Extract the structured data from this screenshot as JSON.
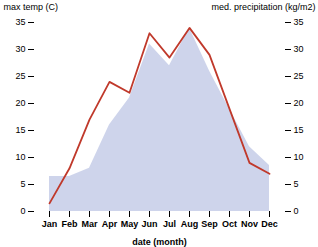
{
  "chart_data": {
    "type": "line",
    "xlabel": "date (month)",
    "ylabel": "max temp (C)",
    "y2label": "med. precipitation (kg/m2)",
    "categories": [
      "Jan",
      "Feb",
      "Mar",
      "Apr",
      "May",
      "Jun",
      "Jul",
      "Aug",
      "Sep",
      "Oct",
      "Nov",
      "Dec"
    ],
    "ylim": [
      0,
      35
    ],
    "yticks": [
      0,
      5,
      10,
      15,
      20,
      25,
      30,
      35
    ],
    "y2lim": [
      0,
      35
    ],
    "y2ticks": [
      0,
      5,
      10,
      15,
      20,
      25,
      30,
      35
    ],
    "series": [
      {
        "type": "area",
        "axis": "y2",
        "color": "#c5cce8",
        "values": [
          6.5,
          6.5,
          8.0,
          16.0,
          21.0,
          31.0,
          27.0,
          34.0,
          26.0,
          19.0,
          12.0,
          8.5
        ]
      },
      {
        "type": "line",
        "color": "#c0392b",
        "values": [
          1.5,
          8.0,
          17.0,
          24.0,
          22.0,
          33.0,
          28.5,
          34.0,
          29.0,
          19.0,
          9.0,
          7.0
        ]
      }
    ]
  }
}
